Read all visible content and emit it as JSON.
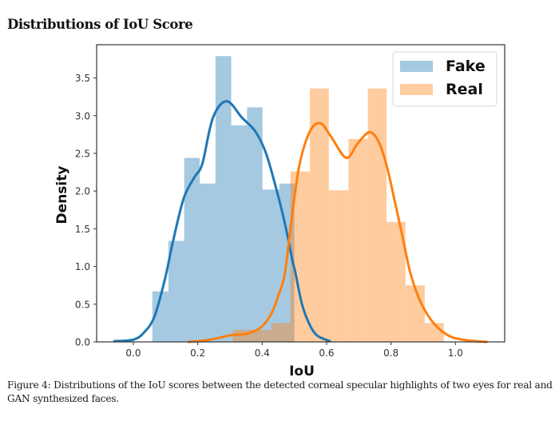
{
  "page": {
    "section_title": "Distributions of IoU Score",
    "caption": "Figure 4: Distributions of the IoU scores between the detected corneal specular highlights of two eyes for real and GAN synthesized faces."
  },
  "chart_data": {
    "type": "histogram-kde",
    "title": "",
    "xlabel": "IoU",
    "ylabel": "Density",
    "xlim": [
      -0.114,
      1.153
    ],
    "ylim": [
      0,
      3.94
    ],
    "xticks": [
      0.0,
      0.2,
      0.4,
      0.6,
      0.8,
      1.0
    ],
    "xtick_labels": [
      "0.0",
      "0.2",
      "0.4",
      "0.6",
      "0.8",
      "1.0"
    ],
    "yticks": [
      0.0,
      0.5,
      1.0,
      1.5,
      2.0,
      2.5,
      3.0,
      3.5
    ],
    "ytick_labels": [
      "0.0",
      "0.5",
      "1.0",
      "1.5",
      "2.0",
      "2.5",
      "3.0",
      "3.5"
    ],
    "grid": false,
    "legend": {
      "position": "top-right",
      "entries": [
        "Fake",
        "Real"
      ]
    },
    "series": [
      {
        "name": "Fake",
        "line_color": "#1f77b4",
        "fill_color": "#a7c8e2",
        "histogram": {
          "bin_edges": [
            0.059,
            0.109,
            0.158,
            0.206,
            0.255,
            0.304,
            0.353,
            0.401,
            0.453,
            0.5
          ],
          "densities": [
            0.67,
            1.34,
            2.44,
            2.1,
            3.79,
            2.87,
            3.11,
            2.02,
            2.1
          ]
        },
        "kde": {
          "x": [
            -0.059,
            0.0,
            0.032,
            0.065,
            0.098,
            0.123,
            0.156,
            0.189,
            0.214,
            0.247,
            0.29,
            0.338,
            0.379,
            0.412,
            0.445,
            0.47,
            0.494,
            0.502,
            0.523,
            0.544,
            0.569,
            0.61
          ],
          "y": [
            0.01,
            0.03,
            0.12,
            0.33,
            0.83,
            1.33,
            1.9,
            2.18,
            2.36,
            2.97,
            3.19,
            2.97,
            2.79,
            2.5,
            2.01,
            1.58,
            1.08,
            0.94,
            0.51,
            0.26,
            0.09,
            0.01
          ]
        }
      },
      {
        "name": "Real",
        "line_color": "#ff7f0e",
        "fill_color": "#fdc79b",
        "histogram": {
          "bin_edges": [
            0.309,
            0.369,
            0.428,
            0.488,
            0.548,
            0.607,
            0.668,
            0.728,
            0.786,
            0.845,
            0.905,
            0.964
          ],
          "densities": [
            0.16,
            0.16,
            0.25,
            2.26,
            3.36,
            2.01,
            2.69,
            3.36,
            1.59,
            0.75,
            0.25
          ]
        },
        "kde": {
          "x": [
            0.172,
            0.238,
            0.304,
            0.354,
            0.395,
            0.428,
            0.453,
            0.47,
            0.49,
            0.515,
            0.548,
            0.581,
            0.614,
            0.661,
            0.696,
            0.733,
            0.762,
            0.787,
            0.812,
            0.837,
            0.861,
            0.894,
            0.936,
            0.985,
            1.04,
            1.097
          ],
          "y": [
            0.0,
            0.03,
            0.09,
            0.11,
            0.19,
            0.37,
            0.65,
            0.9,
            1.58,
            2.33,
            2.79,
            2.9,
            2.72,
            2.44,
            2.63,
            2.78,
            2.65,
            2.33,
            1.86,
            1.37,
            0.9,
            0.51,
            0.23,
            0.07,
            0.02,
            0.0
          ]
        }
      }
    ]
  }
}
